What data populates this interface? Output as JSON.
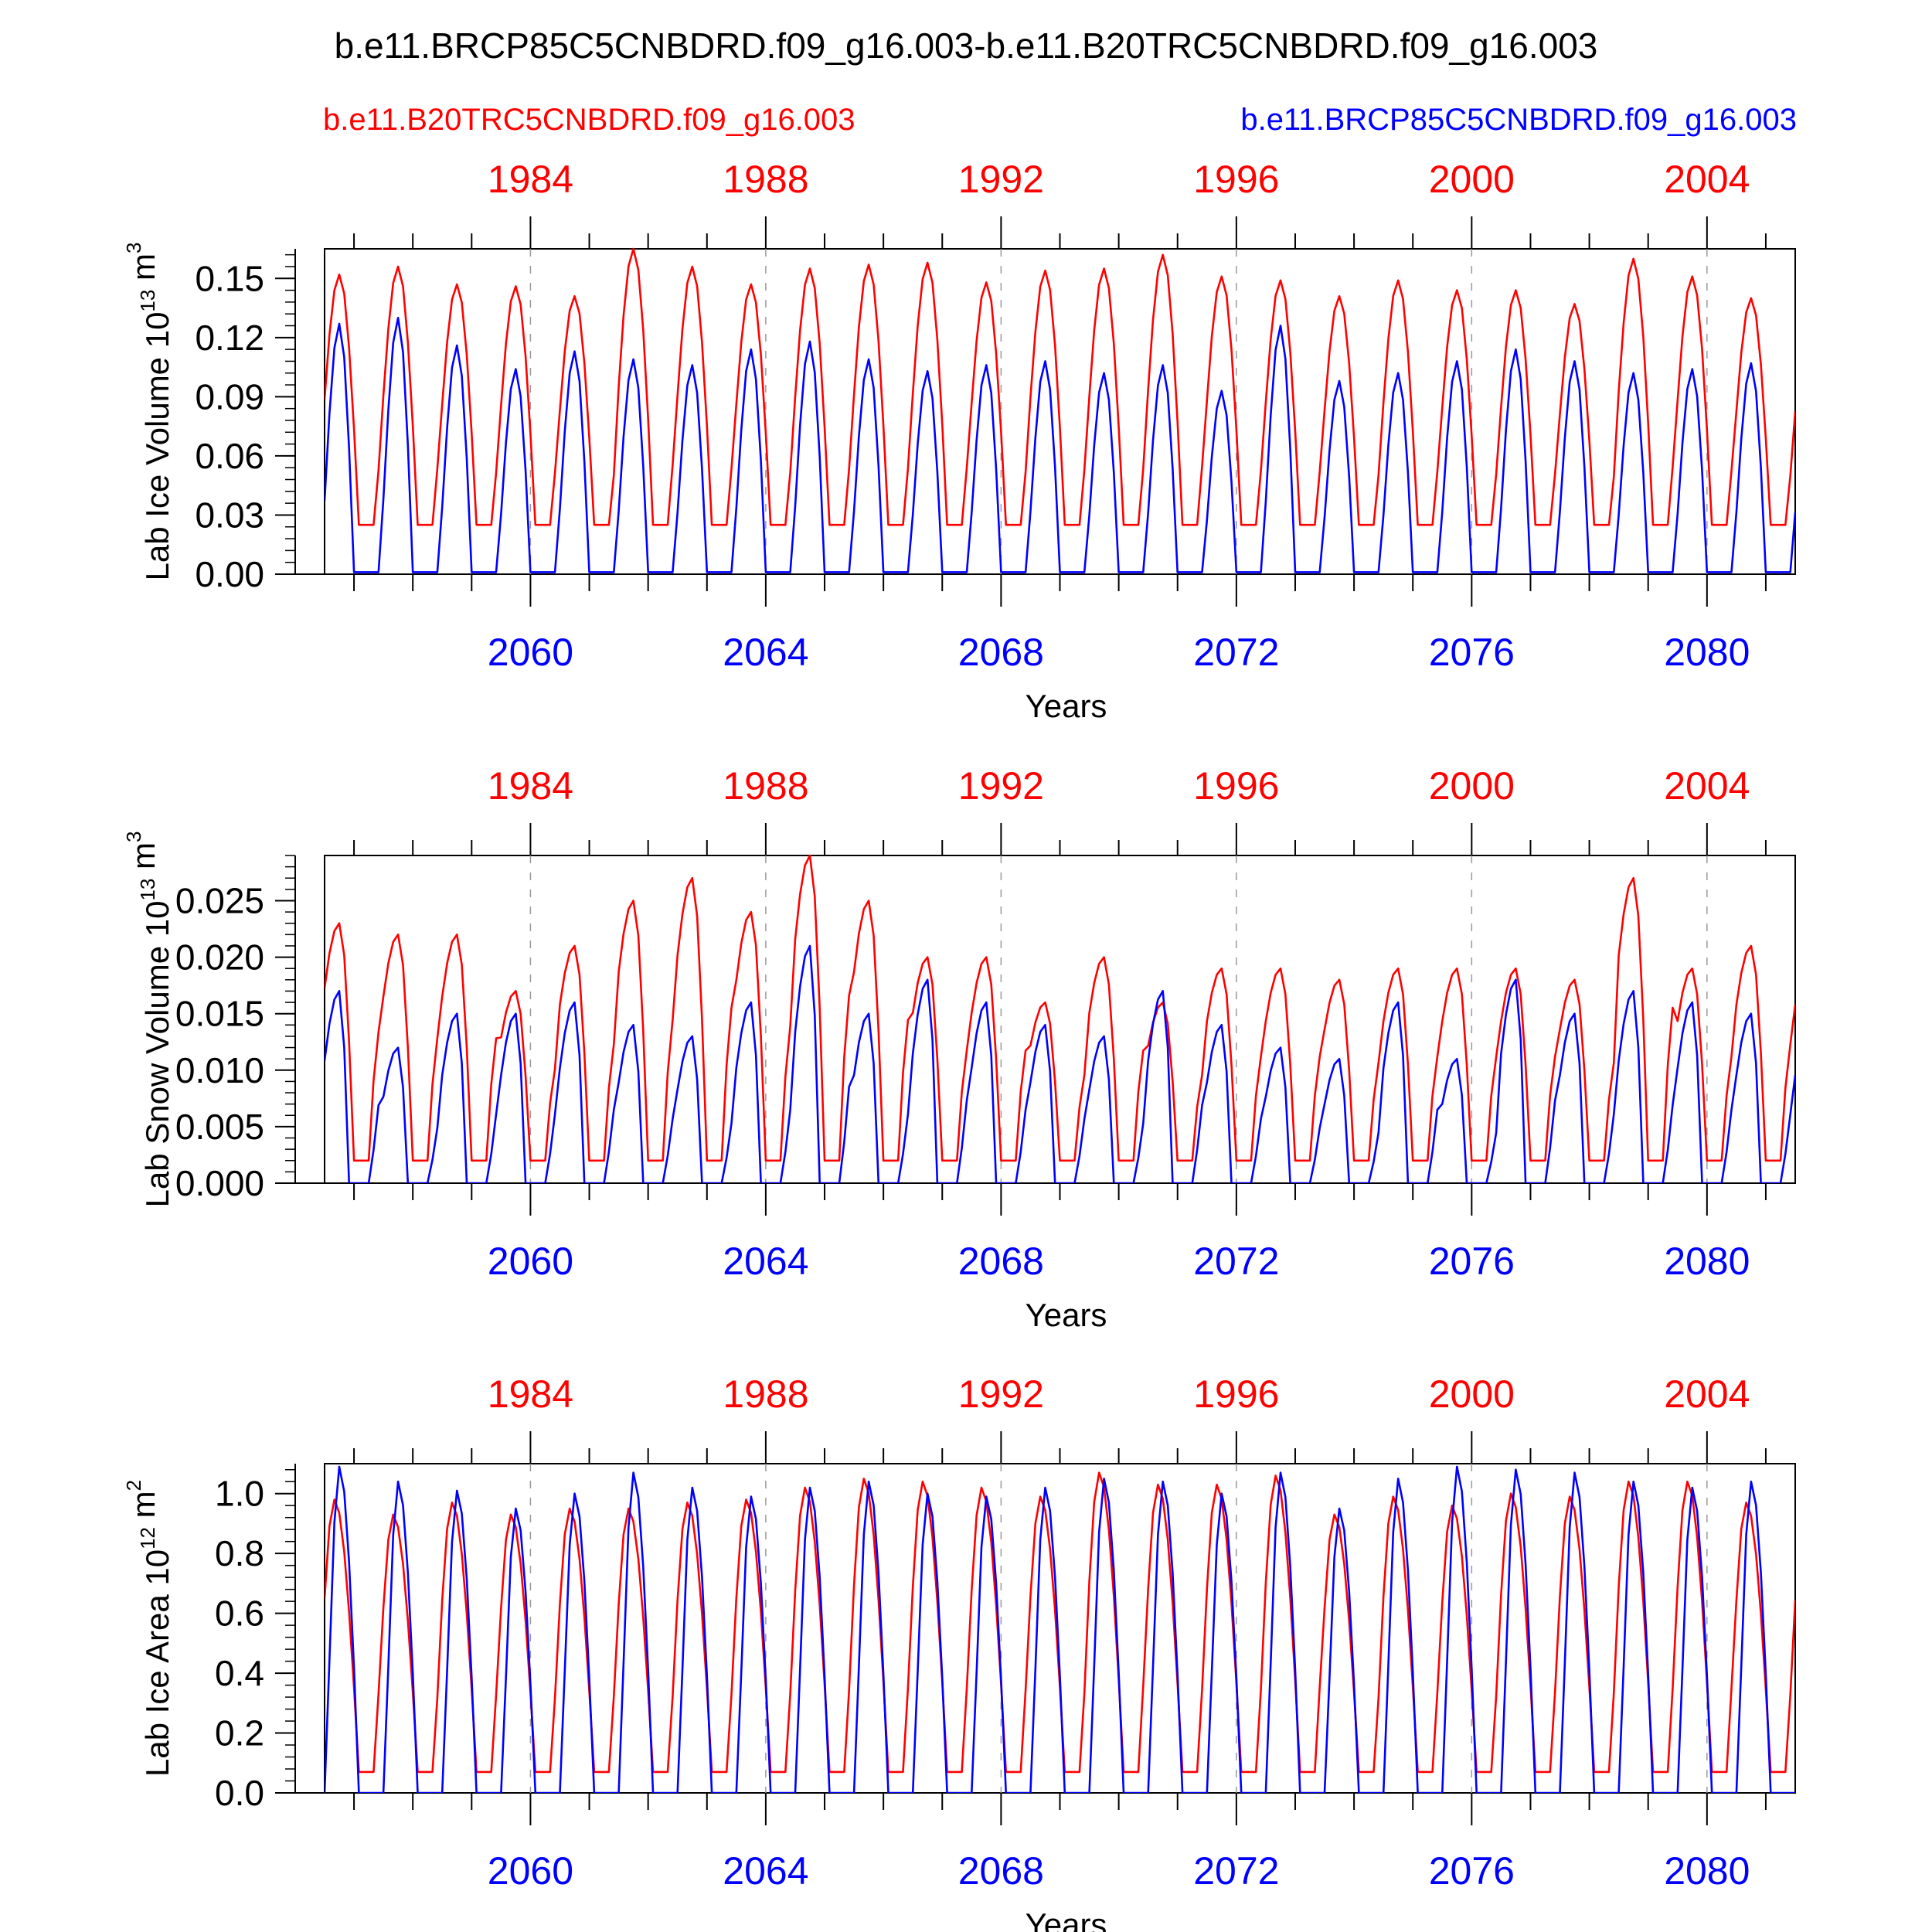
{
  "figure": {
    "title": "b.e11.BRCP85C5CNBDRD.f09_g16.003-b.e11.B20TRC5CNBDRD.f09_g16.003",
    "run_red": "b.e11.B20TRC5CNBDRD.f09_g16.003",
    "run_blue": "b.e11.BRCP85C5CNBDRD.f09_g16.003"
  },
  "colors": {
    "red": "#ff0000",
    "blue": "#0000ff",
    "axis": "#000000",
    "gridline": "#999999"
  },
  "chart_data": [
    {
      "type": "line",
      "title": "",
      "xlabel": "Years",
      "ylabel_text": "Lab Ice Volume 10",
      "ylabel_exp": "13",
      "ylabel_unit": " m",
      "ylabel_unit_exp": "3",
      "ylim": [
        0,
        0.165
      ],
      "yticks": [
        "0.00",
        "0.03",
        "0.06",
        "0.09",
        "0.12",
        "0.15"
      ],
      "ytick_values": [
        0,
        0.03,
        0.06,
        0.09,
        0.12,
        0.15
      ],
      "xlim_blue": [
        2056.5,
        2081.5
      ],
      "xlim_red": [
        1980.5,
        2005.5
      ],
      "xticks_blue": [
        "2060",
        "2064",
        "2068",
        "2072",
        "2076",
        "2080"
      ],
      "xticks_red": [
        "1984",
        "1988",
        "1992",
        "1996",
        "2000",
        "2004"
      ],
      "series": [
        {
          "name": "b.e11.B20TRC5CNBDRD.f09_g16.003",
          "color": "#ff0000",
          "seasonal": {
            "min": 0.025,
            "peak_month": 3,
            "rise_months": 5,
            "fall_months": 4
          },
          "annual_peaks": [
            0.152,
            0.156,
            0.147,
            0.146,
            0.141,
            0.165,
            0.156,
            0.147,
            0.155,
            0.157,
            0.158,
            0.148,
            0.154,
            0.155,
            0.162,
            0.151,
            0.149,
            0.141,
            0.149,
            0.144,
            0.144,
            0.137,
            0.16,
            0.151,
            0.14
          ]
        },
        {
          "name": "b.e11.BRCP85C5CNBDRD.f09_g16.003",
          "color": "#0000ff",
          "seasonal": {
            "min": 0.001,
            "peak_month": 3,
            "rise_months": 4,
            "fall_months": 3
          },
          "annual_peaks": [
            0.127,
            0.13,
            0.116,
            0.104,
            0.113,
            0.109,
            0.106,
            0.114,
            0.118,
            0.109,
            0.103,
            0.106,
            0.108,
            0.102,
            0.106,
            0.093,
            0.126,
            0.098,
            0.102,
            0.108,
            0.114,
            0.108,
            0.102,
            0.104,
            0.107
          ]
        }
      ]
    },
    {
      "type": "line",
      "title": "",
      "xlabel": "Years",
      "ylabel_text": "Lab Snow Volume 10",
      "ylabel_exp": "13",
      "ylabel_unit": " m",
      "ylabel_unit_exp": "3",
      "ylim": [
        0,
        0.029
      ],
      "yticks": [
        "0.000",
        "0.005",
        "0.010",
        "0.015",
        "0.020",
        "0.025"
      ],
      "ytick_values": [
        0,
        0.005,
        0.01,
        0.015,
        0.02,
        0.025
      ],
      "xlim_blue": [
        2056.5,
        2081.5
      ],
      "xlim_red": [
        1980.5,
        2005.5
      ],
      "xticks_blue": [
        "2060",
        "2064",
        "2068",
        "2072",
        "2076",
        "2080"
      ],
      "xticks_red": [
        "1984",
        "1988",
        "1992",
        "1996",
        "2000",
        "2004"
      ],
      "series": [
        {
          "name": "b.e11.B20TRC5CNBDRD.f09_g16.003",
          "color": "#ff0000",
          "seasonal": {
            "min": 0.002,
            "peak_month": 3,
            "rise_months": 7,
            "fall_months": 3
          },
          "annual_peaks": [
            0.023,
            0.022,
            0.022,
            0.017,
            0.021,
            0.025,
            0.027,
            0.024,
            0.029,
            0.025,
            0.02,
            0.02,
            0.016,
            0.02,
            0.016,
            0.019,
            0.019,
            0.018,
            0.019,
            0.019,
            0.019,
            0.018,
            0.027,
            0.019,
            0.021
          ]
        },
        {
          "name": "b.e11.BRCP85C5CNBDRD.f09_g16.003",
          "color": "#0000ff",
          "seasonal": {
            "min": 0.0,
            "peak_month": 3,
            "rise_months": 6,
            "fall_months": 2
          },
          "annual_peaks": [
            0.017,
            0.012,
            0.015,
            0.015,
            0.016,
            0.014,
            0.013,
            0.016,
            0.021,
            0.015,
            0.018,
            0.016,
            0.014,
            0.013,
            0.017,
            0.014,
            0.012,
            0.011,
            0.016,
            0.011,
            0.018,
            0.015,
            0.017,
            0.016,
            0.015
          ]
        }
      ]
    },
    {
      "type": "line",
      "title": "",
      "xlabel": "Years",
      "ylabel_text": "Lab Ice Area 10",
      "ylabel_exp": "12",
      "ylabel_unit": " m",
      "ylabel_unit_exp": "2",
      "ylim": [
        0,
        1.1
      ],
      "yticks": [
        "0.0",
        "0.2",
        "0.4",
        "0.6",
        "0.8",
        "1.0"
      ],
      "ytick_values": [
        0,
        0.2,
        0.4,
        0.6,
        0.8,
        1.0
      ],
      "xlim_blue": [
        2056.5,
        2081.5
      ],
      "xlim_red": [
        1980.5,
        2005.5
      ],
      "xticks_blue": [
        "2060",
        "2064",
        "2068",
        "2072",
        "2076",
        "2080"
      ],
      "xticks_red": [
        "1984",
        "1988",
        "1992",
        "1996",
        "2000",
        "2004"
      ],
      "series": [
        {
          "name": "b.e11.B20TRC5CNBDRD.f09_g16.003",
          "color": "#ff0000",
          "seasonal": {
            "min": 0.07,
            "peak_month": 2,
            "rise_months": 4,
            "fall_months": 5
          },
          "annual_peaks": [
            0.98,
            0.93,
            0.97,
            0.93,
            0.95,
            0.95,
            0.97,
            0.98,
            1.02,
            1.05,
            1.04,
            1.02,
            0.99,
            1.07,
            1.03,
            1.03,
            1.06,
            0.93,
            0.99,
            0.96,
            1.0,
            0.99,
            1.04,
            1.04,
            0.97
          ]
        },
        {
          "name": "b.e11.BRCP85C5CNBDRD.f09_g16.003",
          "color": "#0000ff",
          "seasonal": {
            "min": 0.0,
            "peak_month": 3,
            "rise_months": 3,
            "fall_months": 4
          },
          "annual_peaks": [
            1.09,
            1.04,
            1.01,
            0.95,
            1.0,
            1.07,
            1.02,
            0.99,
            1.02,
            1.04,
            1.0,
            0.99,
            1.02,
            1.05,
            1.04,
            1.0,
            1.07,
            0.95,
            1.05,
            1.09,
            1.08,
            1.07,
            1.04,
            1.02,
            1.04
          ]
        }
      ]
    }
  ]
}
